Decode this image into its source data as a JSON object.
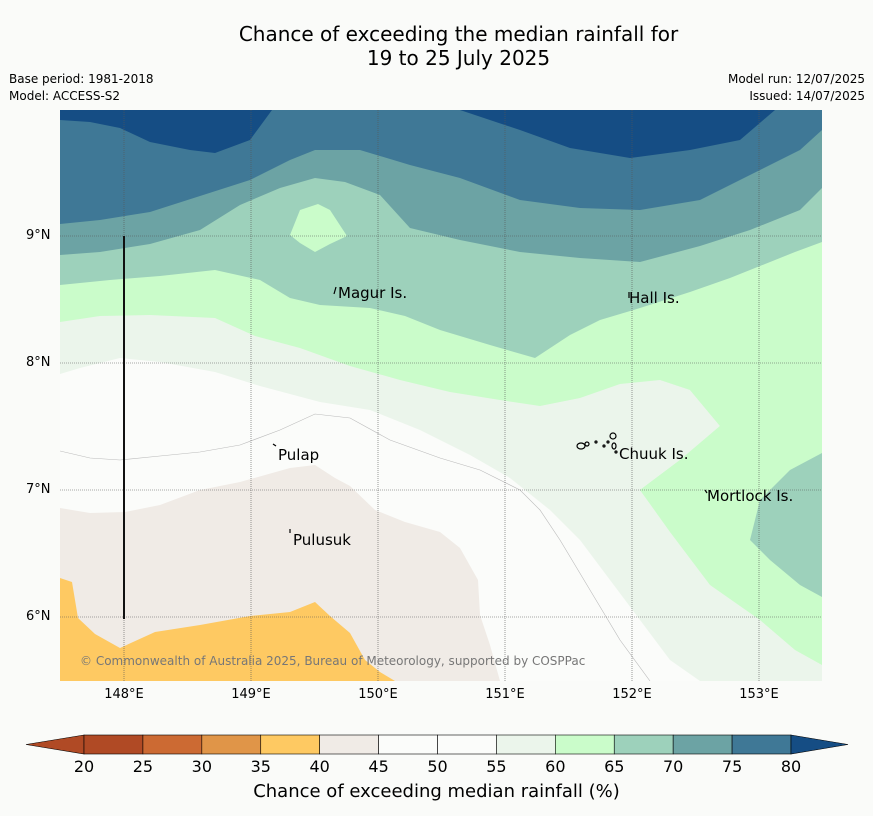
{
  "title_line1": "Chance of exceeding the median rainfall for",
  "title_line2": "19 to 25 July 2025",
  "meta_left": [
    "Base period: 1981-2018",
    "Model: ACCESS-S2"
  ],
  "meta_right": [
    "Model run: 12/07/2025",
    "Issued: 14/07/2025"
  ],
  "x_ticks": [
    "148°E",
    "149°E",
    "150°E",
    "151°E",
    "152°E",
    "153°E"
  ],
  "y_ticks": [
    "9°N",
    "8°N",
    "7°N",
    "6°N"
  ],
  "places": [
    {
      "name": "Magur Is."
    },
    {
      "name": "Hall Is."
    },
    {
      "name": "Pulap"
    },
    {
      "name": "Chuuk Is."
    },
    {
      "name": "Mortlock Is."
    },
    {
      "name": "Pulusuk"
    }
  ],
  "copyright": "© Commonwealth of Australia 2025, Bureau of Meteorology, supported by COSPPac",
  "colorbar": {
    "title": "Chance of exceeding median rainfall (%)",
    "ticks": [
      "20",
      "25",
      "30",
      "35",
      "40",
      "45",
      "50",
      "55",
      "60",
      "65",
      "70",
      "75",
      "80"
    ],
    "colors": [
      "#b04a25",
      "#cc6a33",
      "#e09548",
      "#fec962",
      "#f0ebe6",
      "#fbfcfa",
      "#fbfcfa",
      "#ebf5eb",
      "#cafcca",
      "#9dd1bb",
      "#6ca3a4",
      "#3f7896",
      "#154d84"
    ]
  }
}
